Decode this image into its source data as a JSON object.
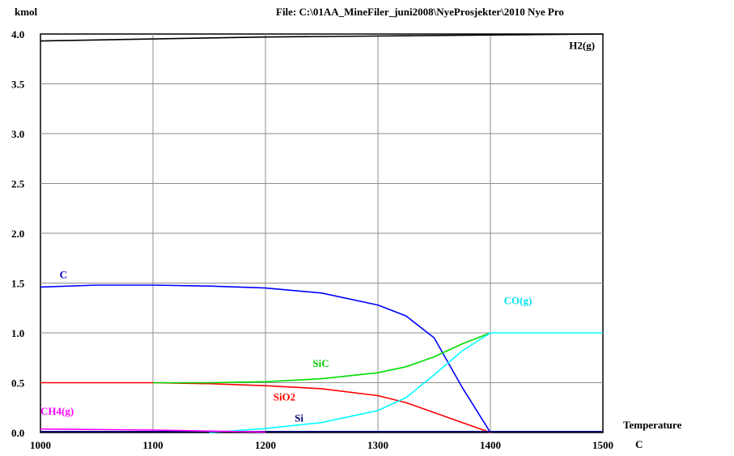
{
  "header": {
    "unit": "kmol",
    "file": "File: C:\\01AA_MineFiler_juni2008\\NyeProsjekter\\2010 Nye Pro"
  },
  "chart_data": {
    "type": "line",
    "xlabel": "Temperature",
    "xunit": "C",
    "ylabel": "kmol",
    "xlim": [
      1000,
      1500
    ],
    "ylim": [
      0,
      4.0
    ],
    "x_ticks": [
      "1000",
      "1100",
      "1200",
      "1300",
      "1400",
      "1500"
    ],
    "y_ticks": [
      "0.0",
      "0.5",
      "1.0",
      "1.5",
      "2.0",
      "2.5",
      "3.0",
      "3.5",
      "4.0"
    ],
    "grid": true,
    "series": [
      {
        "name": "H2(g)",
        "color": "#000000",
        "x": [
          1000,
          1100,
          1200,
          1300,
          1400,
          1500
        ],
        "y": [
          3.93,
          3.95,
          3.97,
          3.98,
          3.99,
          4.0
        ]
      },
      {
        "name": "C",
        "color": "#0000ff",
        "x": [
          1000,
          1050,
          1100,
          1150,
          1200,
          1250,
          1300,
          1325,
          1350,
          1375,
          1400
        ],
        "y": [
          1.46,
          1.48,
          1.48,
          1.47,
          1.45,
          1.4,
          1.28,
          1.17,
          0.95,
          0.45,
          0.0
        ]
      },
      {
        "name": "SiO2",
        "color": "#ff0000",
        "x": [
          1000,
          1100,
          1150,
          1200,
          1250,
          1300,
          1325,
          1350,
          1375,
          1400
        ],
        "y": [
          0.5,
          0.5,
          0.49,
          0.47,
          0.44,
          0.37,
          0.3,
          0.2,
          0.1,
          0.0
        ]
      },
      {
        "name": "SiC",
        "color": "#00dd00",
        "x": [
          1100,
          1150,
          1200,
          1250,
          1300,
          1325,
          1350,
          1375,
          1400
        ],
        "y": [
          0.5,
          0.5,
          0.51,
          0.54,
          0.6,
          0.66,
          0.76,
          0.89,
          1.0
        ]
      },
      {
        "name": "CO(g)",
        "color": "#00ffff",
        "x": [
          1150,
          1200,
          1250,
          1300,
          1325,
          1350,
          1375,
          1400,
          1500
        ],
        "y": [
          0.0,
          0.04,
          0.1,
          0.22,
          0.35,
          0.58,
          0.82,
          1.0,
          1.0
        ]
      },
      {
        "name": "Si",
        "color": "#000080",
        "x": [
          1000,
          1350,
          1400,
          1500
        ],
        "y": [
          0.01,
          0.01,
          0.01,
          0.01
        ]
      },
      {
        "name": "CH4(g)",
        "color": "#ff00ff",
        "x": [
          1000,
          1050,
          1100,
          1150,
          1200
        ],
        "y": [
          0.035,
          0.03,
          0.025,
          0.015,
          0.005
        ]
      }
    ],
    "labels": [
      {
        "text": "H2(g)",
        "x": 1470,
        "y": 3.85,
        "color": "#000000"
      },
      {
        "text": "C",
        "x": 1017,
        "y": 1.55,
        "color": "#0000cc"
      },
      {
        "text": "CO(g)",
        "x": 1412,
        "y": 1.29,
        "color": "#00e5ee"
      },
      {
        "text": "SiC",
        "x": 1242,
        "y": 0.66,
        "color": "#00cc00"
      },
      {
        "text": "SiO2",
        "x": 1207,
        "y": 0.32,
        "color": "#ff0000"
      },
      {
        "text": "Si",
        "x": 1226,
        "y": 0.11,
        "color": "#000080"
      },
      {
        "text": "CH4(g)",
        "x": 1000,
        "y": 0.18,
        "color": "#ff00ff"
      }
    ]
  }
}
